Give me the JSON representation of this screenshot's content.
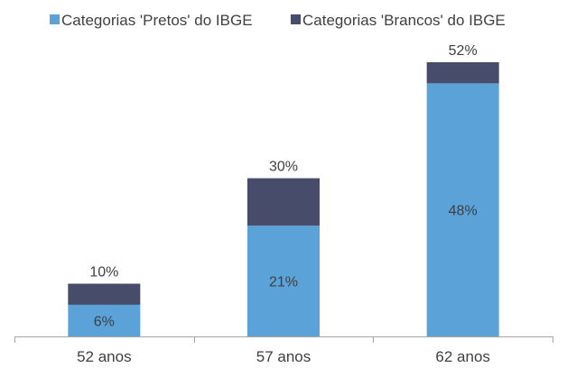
{
  "chart_data": {
    "type": "bar",
    "stacked": true,
    "categories": [
      "52 anos",
      "57 anos",
      "62 anos"
    ],
    "series": [
      {
        "name": "Categorias 'Pretos' do IBGE",
        "values": [
          6,
          21,
          48
        ],
        "labels": [
          "6%",
          "21%",
          "48%"
        ],
        "color": "#5aa2d8"
      },
      {
        "name": "Categorias 'Brancos' do IBGE",
        "values": [
          4,
          9,
          4
        ],
        "color": "#474c6b"
      }
    ],
    "totals": [
      10,
      30,
      52
    ],
    "total_labels": [
      "10%",
      "30%",
      "52%"
    ],
    "ylim": [
      0,
      52
    ],
    "grid": false,
    "legend": "top-left",
    "axis_color": "#a6a6a6",
    "text_color": "#404040"
  }
}
